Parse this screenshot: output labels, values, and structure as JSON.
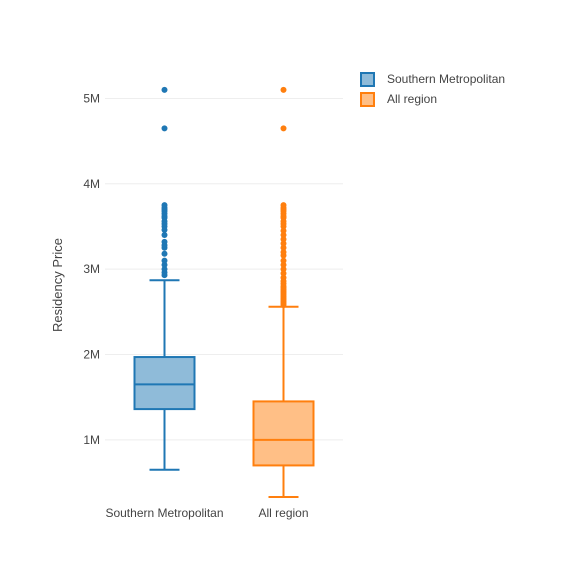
{
  "chart_data": {
    "type": "box",
    "title": "",
    "xlabel": "",
    "ylabel": "Residency Price",
    "ylim": [
      330000,
      5310000
    ],
    "yticks": [
      1000000,
      2000000,
      3000000,
      4000000,
      5000000
    ],
    "ytick_labels": [
      "1M",
      "2M",
      "3M",
      "4M",
      "5M"
    ],
    "grid": true,
    "legend_position": "top-right",
    "categories": [
      "Southern Metropolitan",
      "All region"
    ],
    "series": [
      {
        "name": "Southern Metropolitan",
        "color": "#1f77b4",
        "fill": "#8fbbd9",
        "whisker_low": 650000,
        "q1": 1360000,
        "median": 1650000,
        "q3": 1970000,
        "whisker_high": 2870000,
        "outliers": [
          2930000,
          2960000,
          3000000,
          3050000,
          3100000,
          3180000,
          3250000,
          3280000,
          3320000,
          3400000,
          3460000,
          3500000,
          3530000,
          3560000,
          3600000,
          3620000,
          3650000,
          3680000,
          3700000,
          3720000,
          3750000,
          4650000,
          5100000
        ]
      },
      {
        "name": "All region",
        "color": "#ff7f0e",
        "fill": "#ffbf86",
        "whisker_low": 330000,
        "q1": 700000,
        "median": 1000000,
        "q3": 1450000,
        "whisker_high": 2560000,
        "outliers": [
          2580000,
          2600000,
          2620000,
          2640000,
          2660000,
          2680000,
          2700000,
          2720000,
          2740000,
          2760000,
          2780000,
          2800000,
          2830000,
          2860000,
          2900000,
          2950000,
          3000000,
          3050000,
          3100000,
          3160000,
          3200000,
          3250000,
          3300000,
          3350000,
          3400000,
          3450000,
          3500000,
          3530000,
          3560000,
          3600000,
          3620000,
          3650000,
          3680000,
          3700000,
          3720000,
          3750000,
          4650000,
          5100000
        ]
      }
    ]
  }
}
